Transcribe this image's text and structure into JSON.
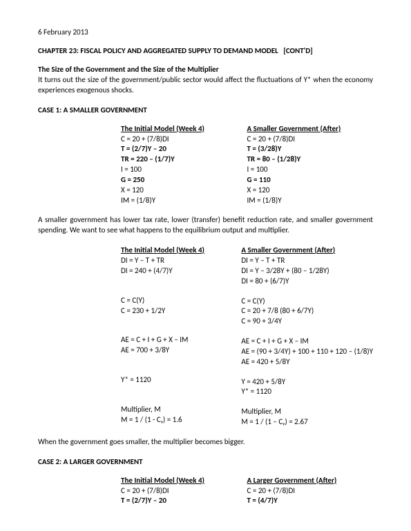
{
  "date": "6 February 2013",
  "chapter": "CHAPTER 23: FISCAL POLICY AND AGGREGATED SUPPLY TO DEMAND MODEL   [CONT'D]",
  "sec1_title": "The Size of the Government and the Size of the Multiplier",
  "sec1_para": "It turns out the size of the government/public sector would affect the fluctuations of Y* when the economy experiences exogenous shocks.",
  "case1_title": "CASE 1: A SMALLER GOVERNMENT",
  "hdr_initial": "The Initial Model (Week 4)",
  "hdr_smaller": "A Smaller Government (After)",
  "hdr_larger": "A Larger Government (After)",
  "c1a_l": {
    "r1": "C = 20 + (7/8)DI",
    "r2": "T = (2/7)Y – 20",
    "r3": "TR = 220 – (1/7)Y",
    "r4": "I = 100",
    "r5": "G = 250",
    "r6": "X = 120",
    "r7": "IM = (1/8)Y"
  },
  "c1a_r": {
    "r1": "C = 20 + (7/8)DI",
    "r2": "T = (3/28)Y",
    "r3": "TR = 80 – (1/28)Y",
    "r4": "I = 100",
    "r5": "G = 110",
    "r6": "X = 120",
    "r7": "IM = (1/8)Y"
  },
  "c1_para": "A smaller government has lower tax rate, lower (transfer) benefit reduction rate, and smaller government spending. We want to see what happens to the equilibrium output and multiplier.",
  "c1b_l": {
    "r1": "DI = Y – T + TR",
    "r2": "DI = 240 + (4/7)Y",
    "r3": "C = C(Y)",
    "r4": "C = 230 + 1/2Y",
    "r5": "AE = C + I + G + X – IM",
    "r6": "AE = 700 + 3/8Y",
    "r7": "Y* = 1120",
    "r8": "Multiplier, M",
    "r9": "M = 1 / (1 - Cᵧ) = 1.6"
  },
  "c1b_r": {
    "r1": "DI = Y – T + TR",
    "r2": "DI = Y – 3/28Y + (80 – 1/28Y)",
    "r3": "DI = 80 + (6/7)Y",
    "r4": "C = C(Y)",
    "r5": "C = 20 + 7/8 (80 + 6/7Y)",
    "r6": "C = 90 + 3/4Y",
    "r7": "AE = C + I + G + X – IM",
    "r8": "AE = (90 + 3/4Y) + 100 + 110 + 120 – (1/8)Y",
    "r9": "AE = 420 + 5/8Y",
    "r10": "Y = 420 + 5/8Y",
    "r11": "Y* = 1120",
    "r12": "Multiplier, M",
    "r13": "M = 1 / (1 – Cᵧ) = 2.67"
  },
  "c1_conclusion": "When the government goes smaller, the multiplier becomes bigger.",
  "case2_title": "CASE 2: A LARGER GOVERNMENT",
  "c2a_l": {
    "r1": "C = 20 + (7/8)DI",
    "r2": "T = (2/7)Y – 20"
  },
  "c2a_r": {
    "r1": "C = 20 + (7/8)DI",
    "r2": "T = (4/7)Y"
  }
}
